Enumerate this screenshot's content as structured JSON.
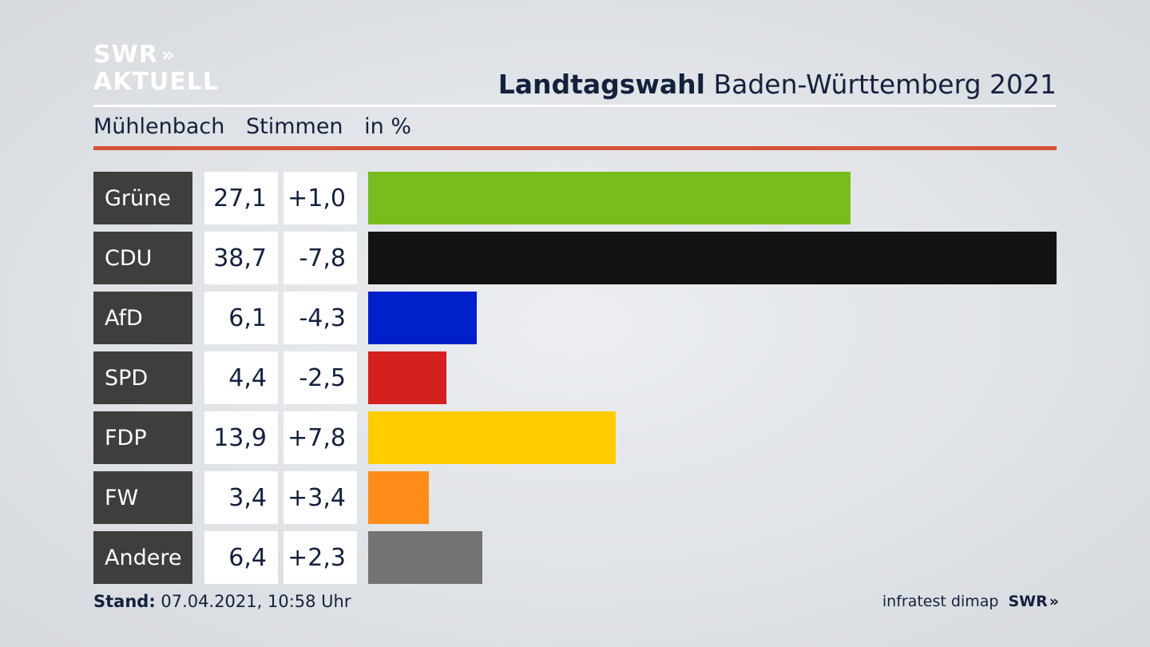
{
  "logo": {
    "line1": "SWR",
    "arrows": "»",
    "line2": "AKTUELL"
  },
  "header": {
    "title_bold": "Landtagswahl",
    "title_rest": " Baden-Württemberg 2021"
  },
  "subheader": {
    "place": "Mühlenbach",
    "measure": "Stimmen",
    "unit": "in %"
  },
  "footer": {
    "stand_label": "Stand:",
    "stand_value": " 07.04.2021, 10:58 Uhr",
    "source": "infratest dimap",
    "brand": "SWR",
    "brand_arrows": "»"
  },
  "colors": {
    "accent_rule": "#d5533a",
    "party_box": "#3e3f3d"
  },
  "chart_data": {
    "type": "bar",
    "orientation": "horizontal",
    "title": "Landtagswahl Baden-Württemberg 2021",
    "categories": [
      "Grüne",
      "CDU",
      "AfD",
      "SPD",
      "FDP",
      "FW",
      "Andere"
    ],
    "values": [
      27.1,
      38.7,
      6.1,
      4.4,
      13.9,
      3.4,
      6.4
    ],
    "value_labels": [
      "27,1",
      "38,7",
      "6,1",
      "4,4",
      "13,9",
      "3,4",
      "6,4"
    ],
    "diffs": [
      1.0,
      -7.8,
      -4.3,
      -2.5,
      7.8,
      3.4,
      2.3
    ],
    "diff_labels": [
      "+1,0",
      "-7,8",
      "-4,3",
      "-2,5",
      "+7,8",
      "+3,4",
      "+2,3"
    ],
    "colors": [
      "#76bd1d",
      "#121212",
      "#0021c9",
      "#d52020",
      "#ffcc00",
      "#ff8c1a",
      "#737373"
    ],
    "xlim": [
      0,
      38.7
    ],
    "grid": false,
    "legend": "none"
  }
}
